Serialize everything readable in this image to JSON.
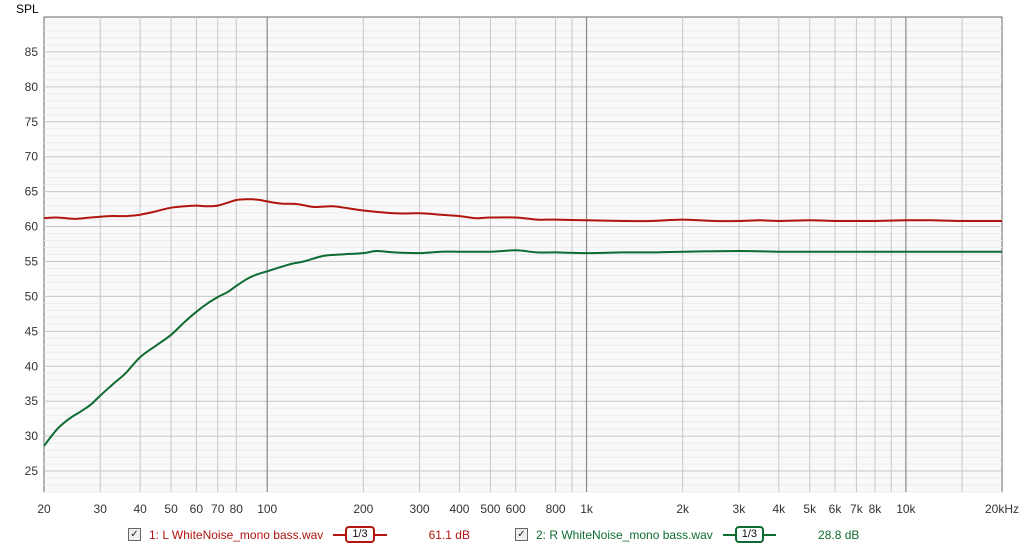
{
  "chart_data": {
    "type": "line",
    "ylabel": "SPL",
    "xscale": "log",
    "xlim": [
      20,
      20000
    ],
    "ylim": [
      22,
      90
    ],
    "yticks": [
      25,
      30,
      35,
      40,
      45,
      50,
      55,
      60,
      65,
      70,
      75,
      80,
      85
    ],
    "ytick_labels": [
      "25",
      "30",
      "35",
      "40",
      "45",
      "50",
      "55",
      "60",
      "65",
      "70",
      "75",
      "80",
      "85"
    ],
    "xticks": [
      20,
      30,
      40,
      50,
      60,
      70,
      80,
      100,
      200,
      300,
      400,
      500,
      600,
      800,
      1000,
      2000,
      3000,
      4000,
      5000,
      6000,
      7000,
      8000,
      10000,
      20000
    ],
    "xtick_labels": [
      "20",
      "30",
      "40",
      "50",
      "60",
      "70",
      "80",
      "100",
      "200",
      "300",
      "400",
      "500",
      "600",
      "800",
      "1k",
      "2k",
      "3k",
      "4k",
      "5k",
      "6k",
      "7k",
      "8k",
      "10k",
      "20kHz"
    ],
    "grid": true,
    "series": [
      {
        "name": "1: L WhiteNoise_mono bass.wav",
        "color": "#b0150e",
        "x": [
          20,
          22,
          25,
          28,
          32,
          36,
          40,
          45,
          50,
          55,
          60,
          65,
          70,
          75,
          80,
          85,
          90,
          95,
          100,
          110,
          125,
          140,
          160,
          180,
          200,
          250,
          300,
          350,
          400,
          450,
          500,
          600,
          700,
          800,
          1000,
          1300,
          1600,
          2000,
          2500,
          3000,
          3500,
          4000,
          5000,
          6000,
          7000,
          8000,
          10000,
          12000,
          15000,
          20000
        ],
        "y": [
          61.2,
          61.3,
          61.1,
          61.3,
          61.5,
          61.5,
          61.7,
          62.2,
          62.7,
          62.9,
          63.0,
          62.9,
          63.0,
          63.4,
          63.8,
          63.9,
          63.9,
          63.8,
          63.6,
          63.3,
          63.2,
          62.8,
          62.9,
          62.6,
          62.3,
          61.9,
          61.9,
          61.7,
          61.5,
          61.2,
          61.3,
          61.3,
          61.0,
          61.0,
          60.9,
          60.8,
          60.8,
          61.0,
          60.8,
          60.8,
          60.9,
          60.8,
          60.9,
          60.8,
          60.8,
          60.8,
          60.9,
          60.9,
          60.8,
          60.8
        ]
      },
      {
        "name": "2: R WhiteNoise_mono bass.wav",
        "color": "#0e6b32",
        "x": [
          20,
          22,
          24,
          26,
          28,
          30,
          33,
          36,
          40,
          45,
          50,
          55,
          60,
          65,
          70,
          75,
          80,
          85,
          90,
          95,
          100,
          110,
          120,
          130,
          150,
          170,
          200,
          220,
          250,
          300,
          350,
          400,
          500,
          600,
          700,
          800,
          1000,
          1300,
          1600,
          2000,
          3000,
          4000,
          5000,
          7000,
          10000,
          15000,
          20000
        ],
        "y": [
          28.6,
          31.0,
          32.5,
          33.5,
          34.5,
          35.8,
          37.5,
          39.0,
          41.3,
          43.0,
          44.5,
          46.3,
          47.8,
          49.0,
          49.9,
          50.6,
          51.5,
          52.3,
          52.9,
          53.3,
          53.6,
          54.2,
          54.7,
          55.0,
          55.8,
          56.0,
          56.2,
          56.5,
          56.3,
          56.2,
          56.4,
          56.4,
          56.4,
          56.6,
          56.3,
          56.3,
          56.2,
          56.3,
          56.3,
          56.4,
          56.5,
          56.4,
          56.4,
          56.4,
          56.4,
          56.4,
          56.4
        ]
      }
    ]
  },
  "legend": [
    {
      "checked": "✓",
      "label": "1: L WhiteNoise_mono bass.wav",
      "smoothing": "1/3",
      "value": "61.1 dB",
      "color": "#b0150e"
    },
    {
      "checked": "✓",
      "label": "2: R WhiteNoise_mono bass.wav",
      "smoothing": "1/3",
      "value": "28.8 dB",
      "color": "#0e6b32"
    }
  ]
}
